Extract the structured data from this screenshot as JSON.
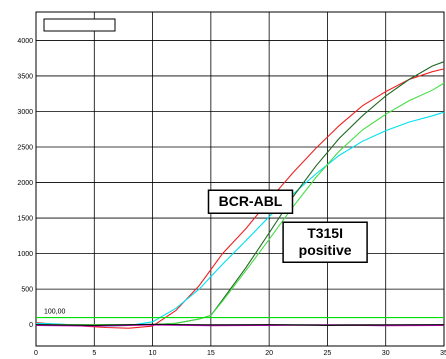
{
  "chart_data": {
    "type": "line",
    "xlim": [
      0,
      35
    ],
    "ylim": [
      -300,
      4400
    ],
    "x_ticks": [
      0,
      5,
      10,
      15,
      20,
      25,
      30,
      35
    ],
    "y_ticks": [
      0,
      500,
      1000,
      1500,
      2000,
      2500,
      3000,
      3500,
      4000
    ],
    "grid": true,
    "legend": "top-left",
    "threshold": {
      "value": 100,
      "label": "100,00",
      "color": "#00dd00"
    },
    "annotations": [
      {
        "text_lines": [
          "BCR-ABL"
        ],
        "x": 18.4,
        "y": 1730
      },
      {
        "text_lines": [
          "T315I",
          "positive"
        ],
        "x": 24.8,
        "y": 1160
      }
    ],
    "series": [
      {
        "color": "#ee2222",
        "x": [
          0,
          2,
          4,
          6,
          8,
          10,
          12,
          14,
          16,
          18,
          20,
          22,
          24,
          26,
          28,
          30,
          32,
          34,
          35
        ],
        "y": [
          30,
          0,
          -20,
          -40,
          -50,
          -20,
          200,
          550,
          1000,
          1350,
          1750,
          2130,
          2480,
          2800,
          3080,
          3280,
          3450,
          3560,
          3600
        ]
      },
      {
        "color": "#00e0f0",
        "x": [
          0,
          2,
          4,
          6,
          8,
          10,
          12,
          14,
          16,
          18,
          20,
          22,
          24,
          26,
          28,
          30,
          32,
          34,
          35
        ],
        "y": [
          20,
          10,
          -10,
          -20,
          -10,
          40,
          230,
          500,
          850,
          1180,
          1520,
          1830,
          2120,
          2380,
          2580,
          2730,
          2850,
          2940,
          2990
        ]
      },
      {
        "color": "#226622",
        "x": [
          0,
          2,
          4,
          6,
          8,
          10,
          12,
          14,
          15,
          16,
          18,
          20,
          22,
          24,
          26,
          28,
          30,
          32,
          34,
          35
        ],
        "y": [
          0,
          0,
          0,
          0,
          0,
          0,
          20,
          80,
          130,
          350,
          800,
          1290,
          1790,
          2230,
          2620,
          2940,
          3220,
          3450,
          3640,
          3700
        ]
      },
      {
        "color": "#44dd44",
        "x": [
          0,
          2,
          4,
          6,
          8,
          10,
          12,
          14,
          15,
          16,
          18,
          20,
          22,
          24,
          26,
          28,
          30,
          32,
          34,
          35
        ],
        "y": [
          0,
          0,
          0,
          0,
          0,
          0,
          20,
          80,
          130,
          330,
          760,
          1200,
          1650,
          2070,
          2440,
          2740,
          2960,
          3150,
          3300,
          3400
        ]
      },
      {
        "color": "#cc00cc",
        "x": [
          0,
          5,
          10,
          15,
          20,
          25,
          30,
          35
        ],
        "y": [
          -10,
          -20,
          -5,
          -15,
          -10,
          -5,
          -15,
          -10
        ]
      },
      {
        "color": "#111111",
        "x": [
          0,
          5,
          10,
          15,
          20,
          25,
          30,
          35
        ],
        "y": [
          0,
          -10,
          5,
          -5,
          0,
          -10,
          -5,
          0
        ]
      }
    ]
  }
}
